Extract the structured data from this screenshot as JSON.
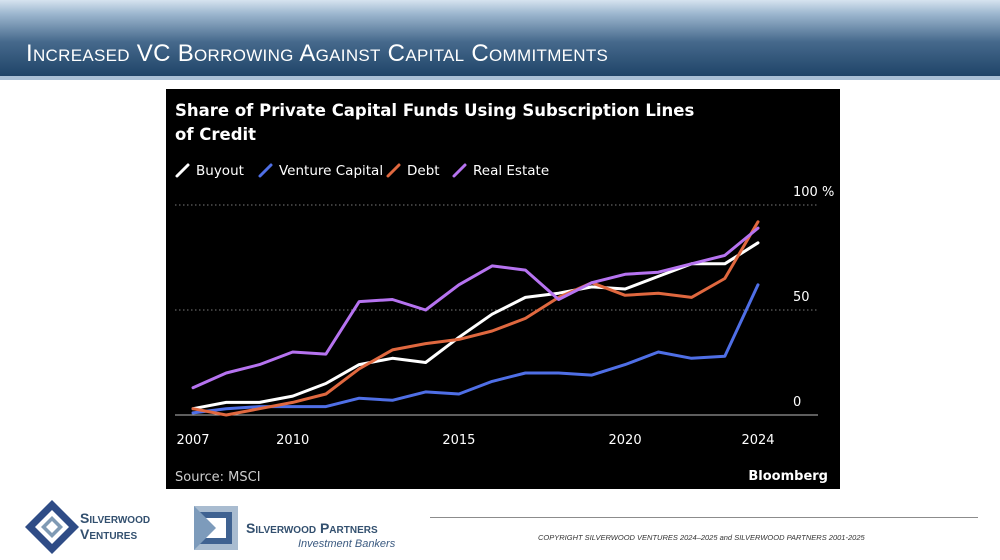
{
  "slide": {
    "title": "Increased VC Borrowing Against Capital Commitments",
    "copyright": "COPYRIGHT SILVERWOOD VENTURES 2024–2025 and SILVERWOOD PARTNERS 2001-2025"
  },
  "logos": {
    "ventures_line1": "Silverwood",
    "ventures_line2": "Ventures",
    "partners_line1": "Silverwood Partners",
    "partners_line2": "Investment Bankers"
  },
  "colors": {
    "banner": "#1f4468",
    "chart_background": "#000000",
    "buyout": "#ffffff",
    "venture_capital": "#4f6fe6",
    "debt": "#e0683f",
    "real_estate": "#b673f0"
  },
  "chart_data": {
    "type": "line",
    "title_line1": "Share of Private Capital Funds Using Subscription Lines",
    "title_line2": "of Credit",
    "source": "Source: MSCI",
    "brand": "Bloomberg",
    "y_unit": "%",
    "ylim": [
      0,
      100
    ],
    "xlim": [
      2007,
      2024
    ],
    "x_ticks": [
      2007,
      2010,
      2015,
      2020,
      2024
    ],
    "y_ticks": [
      0,
      50,
      100
    ],
    "grid": true,
    "legend_position": "top-left",
    "x": [
      2007,
      2008,
      2009,
      2010,
      2011,
      2012,
      2013,
      2014,
      2015,
      2016,
      2017,
      2018,
      2019,
      2020,
      2021,
      2022,
      2023,
      2024
    ],
    "series": [
      {
        "name": "Buyout",
        "color": "#ffffff",
        "values": [
          3,
          6,
          6,
          9,
          15,
          24,
          27,
          25,
          37,
          48,
          56,
          58,
          61,
          60,
          66,
          72,
          72,
          82
        ]
      },
      {
        "name": "Venture Capital",
        "color": "#4f6fe6",
        "values": [
          1,
          3,
          4,
          4,
          4,
          8,
          7,
          11,
          10,
          16,
          20,
          20,
          19,
          24,
          30,
          27,
          28,
          62
        ]
      },
      {
        "name": "Debt",
        "color": "#e0683f",
        "values": [
          3,
          0,
          3,
          6,
          10,
          22,
          31,
          34,
          36,
          40,
          46,
          56,
          63,
          57,
          58,
          56,
          65,
          92
        ]
      },
      {
        "name": "Real Estate",
        "color": "#b673f0",
        "values": [
          13,
          20,
          24,
          30,
          29,
          54,
          55,
          50,
          62,
          71,
          69,
          55,
          63,
          67,
          68,
          72,
          76,
          89
        ]
      }
    ]
  }
}
